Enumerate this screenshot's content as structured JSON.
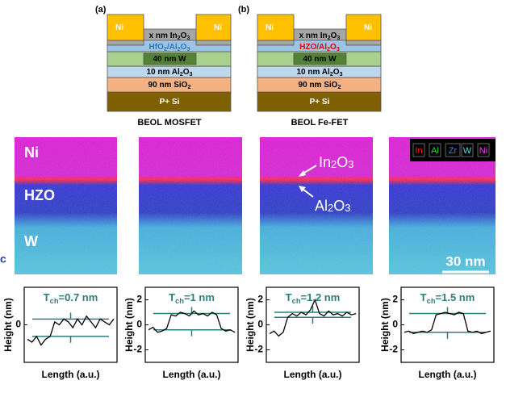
{
  "panel_labels": {
    "a": "(a)",
    "b": "(b)",
    "c": "c"
  },
  "schematics": [
    {
      "caption": "BEOL MOSFET",
      "layers": {
        "ni": {
          "label": [
            "Ni"
          ],
          "color": "#ffc000"
        },
        "channel": {
          "label": [
            "x nm In",
            "2",
            "O",
            "3"
          ],
          "color": "#a6a6a6"
        },
        "dielectric": {
          "label": [
            "HfO",
            "2",
            "/Al",
            "2",
            "O",
            "3"
          ],
          "color": "#9dc3e6",
          "text_color": "#2e75b6"
        },
        "spacer": {
          "label": [],
          "color": "#a9d18e"
        },
        "gate": {
          "label": [
            "40 nm W"
          ],
          "color": "#548235"
        },
        "al2o3": {
          "label": [
            "10 nm Al",
            "2",
            "O",
            "3"
          ],
          "color": "#bdd7ee"
        },
        "sio2": {
          "label": [
            "90 nm SiO",
            "2"
          ],
          "color": "#f4b183"
        },
        "substrate": {
          "label": [
            "P+ Si"
          ],
          "color": "#7f6000"
        }
      }
    },
    {
      "caption": "BEOL Fe-FET",
      "layers": {
        "ni": {
          "label": [
            "Ni"
          ],
          "color": "#ffc000"
        },
        "channel": {
          "label": [
            "x nm In",
            "2",
            "O",
            "3"
          ],
          "color": "#a6a6a6"
        },
        "dielectric": {
          "label": [
            "HZO/Al",
            "2",
            "O",
            "3"
          ],
          "color": "#9dc3e6",
          "text_color": "#e00000"
        },
        "spacer": {
          "label": [],
          "color": "#a9d18e"
        },
        "gate": {
          "label": [
            "40 nm W"
          ],
          "color": "#548235"
        },
        "al2o3": {
          "label": [
            "10 nm Al",
            "2",
            "O",
            "3"
          ],
          "color": "#bdd7ee"
        },
        "sio2": {
          "label": [
            "90 nm SiO",
            "2"
          ],
          "color": "#f4b183"
        },
        "substrate": {
          "label": [
            "P+ Si"
          ],
          "color": "#7f6000"
        }
      }
    }
  ],
  "eds_maps": {
    "first_labels": [
      "Ni",
      "HZO",
      "W"
    ],
    "third_labels": [
      [
        "In",
        "2",
        "O",
        "3"
      ],
      [
        "Al",
        "2",
        "O",
        "3"
      ]
    ],
    "legend": [
      {
        "name": "In",
        "color": "#ff2020"
      },
      {
        "name": "Al",
        "color": "#20e020"
      },
      {
        "name": "Zr",
        "color": "#4080ff"
      },
      {
        "name": "W",
        "color": "#40e0f0"
      },
      {
        "name": "Ni",
        "color": "#ff40ff"
      }
    ],
    "scale_bar": "30 nm"
  },
  "chart_data": [
    {
      "type": "line",
      "title_symbol": "T",
      "title_subscript": "ch",
      "title_value": "=0.7 nm",
      "y_label": "Height (nm)",
      "x_label": "Length (a.u.)",
      "color": "#000000",
      "ylim": [
        -1.3,
        1.3
      ],
      "yticks": [
        0
      ],
      "values": [
        -0.5,
        -0.6,
        -0.4,
        -0.7,
        -0.5,
        -0.4,
        0.1,
        0.0,
        0.2,
        0.1,
        -0.1,
        0.2,
        0.0,
        0.3,
        0.1,
        -0.1,
        0.2,
        0.1,
        0.0,
        0.2
      ]
    },
    {
      "type": "line",
      "title_symbol": "T",
      "title_subscript": "ch",
      "title_value": "=1 nm",
      "y_label": "Height (nm)",
      "x_label": "Length (a.u.)",
      "color": "#000000",
      "ylim": [
        -3,
        3
      ],
      "yticks": [
        2,
        0,
        -2
      ],
      "values": [
        -0.4,
        -0.2,
        -0.6,
        -0.5,
        -0.3,
        0.8,
        0.7,
        1.0,
        0.9,
        0.7,
        1.1,
        0.8,
        0.9,
        0.7,
        1.0,
        0.8,
        -0.3,
        -0.5,
        -0.4,
        -0.6
      ]
    },
    {
      "type": "line",
      "title_symbol": "T",
      "title_subscript": "ch",
      "title_value": "=1.2 nm",
      "y_label": "Height (nm)",
      "x_label": "Length (a.u.)",
      "color": "#000000",
      "ylim": [
        -3,
        3
      ],
      "yticks": [
        2,
        0,
        -2
      ],
      "values": [
        -0.7,
        -0.5,
        -0.9,
        -0.6,
        0.6,
        0.9,
        0.7,
        1.0,
        0.8,
        1.2,
        2.0,
        0.9,
        0.7,
        1.1,
        0.8,
        0.9,
        0.7,
        1.0,
        0.8,
        0.9
      ]
    },
    {
      "type": "line",
      "title_symbol": "T",
      "title_subscript": "ch",
      "title_value": "=1.5 nm",
      "y_label": "Height (nm)",
      "x_label": "Length (a.u.)",
      "color": "#000000",
      "ylim": [
        -3,
        3
      ],
      "yticks": [
        2,
        0,
        -2
      ],
      "values": [
        -0.6,
        -0.5,
        -0.7,
        -0.6,
        -0.5,
        -0.6,
        -0.4,
        0.8,
        0.9,
        1.0,
        0.9,
        0.8,
        1.0,
        0.9,
        -0.5,
        -0.6,
        -0.5,
        -0.7,
        -0.6,
        -0.5
      ]
    }
  ]
}
